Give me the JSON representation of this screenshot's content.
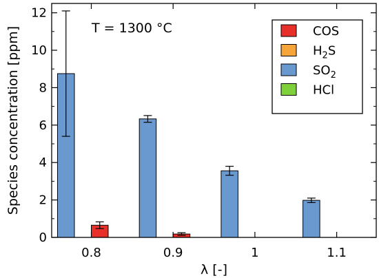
{
  "chart_data": {
    "type": "bar",
    "categories": [
      "0.8",
      "0.9",
      "1",
      "1.1"
    ],
    "series": [
      {
        "name": "COS",
        "color": "#e8302a",
        "values": [
          0.65,
          0.18,
          null,
          null
        ],
        "errors": [
          0.18,
          0.07,
          null,
          null
        ]
      },
      {
        "name": "H2S",
        "name_base": "H",
        "name_sub": "2",
        "name_tail": "S",
        "color": "#f5a53a",
        "values": [
          null,
          null,
          null,
          null
        ],
        "errors": [
          null,
          null,
          null,
          null
        ]
      },
      {
        "name": "SO2",
        "name_base": "SO",
        "name_sub": "2",
        "name_tail": "",
        "color": "#6a99d0",
        "values": [
          8.75,
          6.33,
          3.56,
          1.98
        ],
        "errors": [
          3.35,
          0.18,
          0.24,
          0.12
        ]
      },
      {
        "name": "HCl",
        "color": "#7fd13b",
        "values": [
          null,
          null,
          null,
          null
        ],
        "errors": [
          null,
          null,
          null,
          null
        ]
      }
    ],
    "annotation": "T = 1300 °C",
    "xlabel": "λ [-]",
    "ylabel": "Species concentration [ppm]",
    "ylim": [
      0,
      12.5
    ],
    "yticks": [
      "0",
      "2",
      "4",
      "6",
      "8",
      "10",
      "12"
    ],
    "legend_position": "top-right",
    "grid": false
  }
}
